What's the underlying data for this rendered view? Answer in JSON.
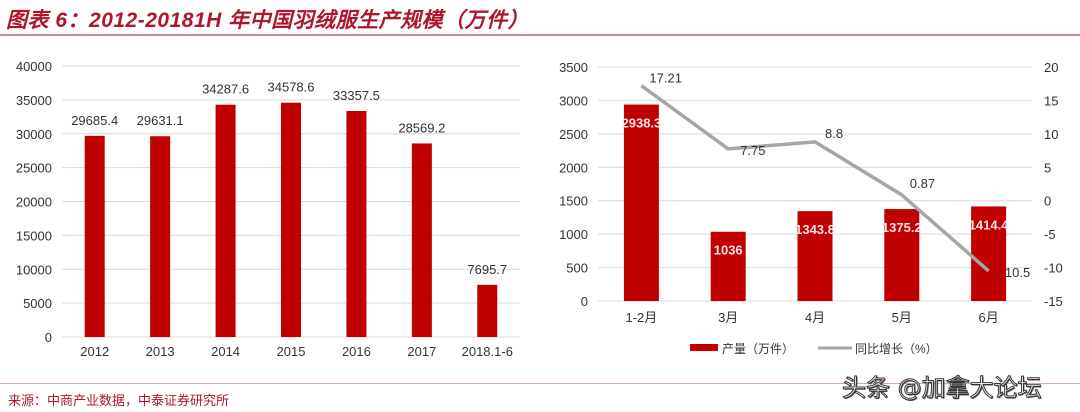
{
  "title": "图表 6：2012-20181H 年中国羽绒服生产规模（万件）",
  "source": "来源：中商产业数据，中泰证券研究所",
  "watermark": "头条 @加拿大论坛",
  "colors": {
    "bar": "#c00000",
    "line": "#a6a6a6",
    "title": "#b0162b",
    "grid": "#d9d9d9"
  },
  "chart_data": [
    {
      "type": "bar",
      "title": "",
      "categories": [
        "2012",
        "2013",
        "2014",
        "2015",
        "2016",
        "2017",
        "2018.1-6"
      ],
      "values": [
        29685.4,
        29631.1,
        34287.6,
        34578.6,
        33357.5,
        28569.2,
        7695.7
      ],
      "value_labels": [
        "29685.4",
        "29631.1",
        "34287.6",
        "34578.6",
        "33357.5",
        "28569.2",
        "7695.7"
      ],
      "xlabel": "",
      "ylabel": "",
      "ylim": [
        0,
        40000
      ],
      "yticks": [
        "40000",
        "35000",
        "30000",
        "25000",
        "20000",
        "15000",
        "10000",
        "5000",
        "0"
      ],
      "grid": true
    },
    {
      "type": "bar+line",
      "title": "",
      "categories": [
        "1-2月",
        "3月",
        "4月",
        "5月",
        "6月"
      ],
      "series": [
        {
          "name": "产量（万件）",
          "type": "bar",
          "axis": "left",
          "values": [
            2938.3,
            1036,
            1343.8,
            1375.2,
            1414.4
          ],
          "value_labels": [
            "2938.3",
            "1036",
            "1343.8",
            "1375.2",
            "1414.4"
          ]
        },
        {
          "name": "同比增长（%）",
          "type": "line",
          "axis": "right",
          "values": [
            17.21,
            7.75,
            8.8,
            0.87,
            -10.5
          ],
          "value_labels": [
            "17.21",
            "7.75",
            "8.8",
            "0.87",
            "-10.5"
          ]
        }
      ],
      "ylim_left": [
        0,
        3500
      ],
      "yticks_left": [
        "3500",
        "3000",
        "2500",
        "2000",
        "1500",
        "1000",
        "500",
        "0"
      ],
      "ylim_right": [
        -15,
        20
      ],
      "yticks_right": [
        "20",
        "15",
        "10",
        "5",
        "0",
        "-5",
        "-10",
        "-15"
      ],
      "legend": [
        "产量（万件）",
        "同比增长（%）"
      ],
      "legend_position": "bottom",
      "grid": true
    }
  ]
}
